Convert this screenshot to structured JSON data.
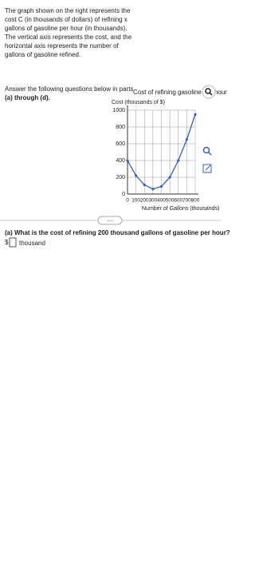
{
  "intro": [
    "The graph shown on the right represents the",
    "cost C (in thousands of dollars) of refining x",
    "gallons of gasoline per hour (in thousands).",
    "The vertical axis represents the cost, and the",
    "horizontal axis represents the number of",
    "gallons of gasoline refined."
  ],
  "instructions": [
    "Answer the following questions below in parts",
    "(a) through (d)."
  ],
  "chart_data": {
    "type": "line",
    "title": "Cost of refining gasoline per hour",
    "y_label": "Cost (thousands of $)",
    "x_label": "Number of Gallons (thousands)",
    "x": [
      0,
      100,
      200,
      300,
      400,
      500,
      600,
      700,
      800
    ],
    "series": [
      {
        "name": "C",
        "color": "#3a5fb0",
        "values": [
          400,
          220,
          110,
          60,
          90,
          200,
          400,
          650,
          950
        ]
      }
    ],
    "xlim": [
      0,
      800
    ],
    "xticks": [
      0,
      100,
      200,
      300,
      400,
      500,
      600,
      700,
      800
    ],
    "ylim": [
      0,
      1000
    ],
    "yticks": [
      0,
      200,
      400,
      600,
      800,
      1000
    ],
    "grid": true
  },
  "more_button": "...",
  "question": {
    "text": "(a) What is the cost of refining 200 thousand gallons of gasoline per hour?",
    "prefix": "$",
    "unit": "thousand"
  }
}
